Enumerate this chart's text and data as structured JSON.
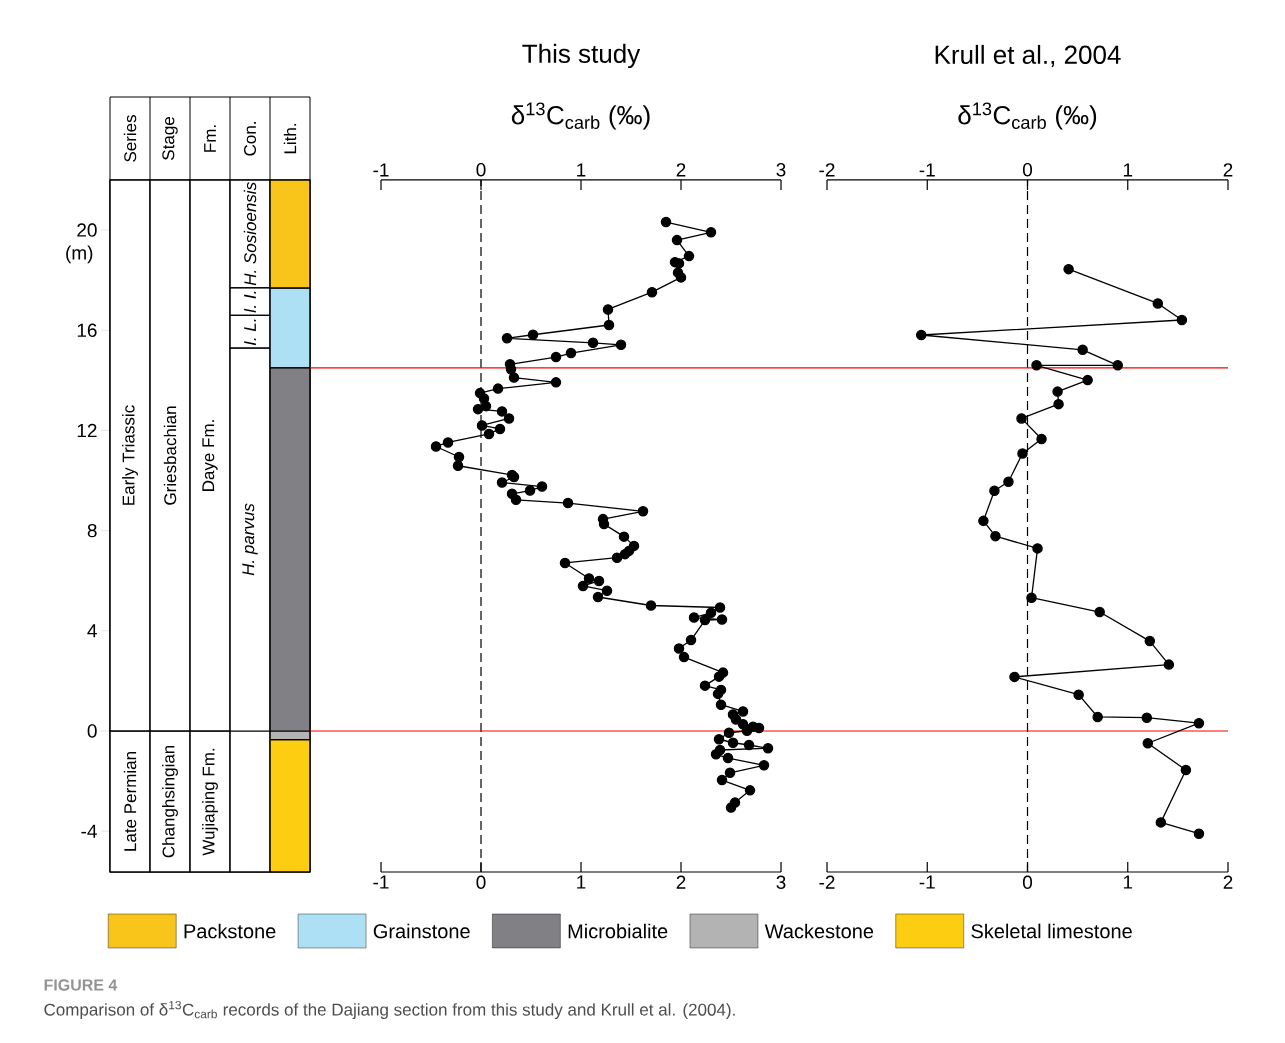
{
  "chart_data": [
    {
      "type": "bar",
      "stacked": true,
      "categories": [
        "Series",
        "Stage",
        "Fm.",
        "Con.",
        "Lith."
      ],
      "ylim": [
        -5.63,
        22.0
      ],
      "yticks": [
        -4,
        0,
        4,
        8,
        12,
        16,
        20
      ],
      "ylabel": "(m)",
      "legend": "bottom",
      "series": [
        {
          "color": "#ffffff",
          "values": [
            -5.63,
            -5.63,
            -5.63,
            -5.63,
            null
          ],
          "value_labels": [
            "Late Permian",
            "Changhsingian",
            "Wujiaping Fm.",
            null,
            null
          ]
        },
        {
          "color": "#ffffff",
          "values": [
            22.0,
            22.0,
            22.0,
            15.29,
            null
          ],
          "value_labels": [
            "Early Triassic",
            "Griesbachian",
            "Daye Fm.",
            "*H. parvus*",
            null
          ]
        },
        {
          "color": "#ffffff",
          "values": [
            null,
            null,
            null,
            1.31,
            null
          ],
          "value_labels": [
            null,
            null,
            null,
            "*I. L.*",
            null
          ]
        },
        {
          "color": "#ffffff",
          "values": [
            null,
            null,
            null,
            1.1,
            null
          ],
          "value_labels": [
            null,
            null,
            null,
            "*I. I.*",
            null
          ]
        },
        {
          "color": "#ffffff",
          "values": [
            null,
            null,
            null,
            4.3,
            null
          ],
          "value_labels": [
            null,
            null,
            null,
            "*H. Sosioensis*",
            null
          ]
        },
        {
          "name": "Wackestone",
          "color": "#b3b3b3",
          "values": [
            null,
            null,
            null,
            null,
            -0.35
          ]
        },
        {
          "name": "Skeletal limestone",
          "color": "#fccd10",
          "values": [
            null,
            null,
            null,
            null,
            -5.28
          ]
        },
        {
          "name": "Microbialite",
          "color": "#808085",
          "values": [
            null,
            null,
            null,
            null,
            14.5
          ]
        },
        {
          "name": "Grainstone",
          "color": "#aee0f5",
          "values": [
            null,
            null,
            null,
            null,
            3.19
          ]
        },
        {
          "name": "Packstone",
          "color": "#f9c51a",
          "values": [
            null,
            null,
            null,
            null,
            4.31
          ]
        }
      ],
      "annotations": [
        "FIGURE 4",
        "Comparison of δ$^{13}$C$_{carb}$ records of the Dajiang section from this study and Krull et al. (2004)."
      ]
    },
    {
      "type": "line",
      "title": "This study",
      "x2label": "δ$^{13}$C$_{carb}$ (‰)",
      "xlim": [
        -1,
        3
      ],
      "xticks": [
        -1,
        0,
        1,
        2,
        3
      ],
      "x2lim": [
        -1,
        3
      ],
      "x2ticks": [
        -1,
        0,
        1,
        2,
        3
      ],
      "ylim": [
        -5.63,
        22.0
      ],
      "tick_labels": "x",
      "marker": "circle",
      "line_style": "solid",
      "color": "#000000",
      "x": [
        1.85,
        2.3,
        1.96,
        2.08,
        1.94,
        1.98,
        1.97,
        2.0,
        1.71,
        1.27,
        1.28,
        0.52,
        0.26,
        1.12,
        1.4,
        0.9,
        0.75,
        0.29,
        0.3,
        0.33,
        0.75,
        0.17,
        -0.01,
        0.03,
        0.05,
        -0.03,
        0.21,
        0.28,
        0.01,
        0.19,
        0.08,
        -0.33,
        -0.45,
        -0.22,
        -0.23,
        0.31,
        0.33,
        0.21,
        0.61,
        0.49,
        0.31,
        0.35,
        0.87,
        1.62,
        1.22,
        1.23,
        1.43,
        1.53,
        1.48,
        1.44,
        1.36,
        0.84,
        1.08,
        1.18,
        1.02,
        1.26,
        1.17,
        1.7,
        2.39,
        2.3,
        2.13,
        2.41,
        2.24,
        2.1,
        1.98,
        2.03,
        2.42,
        2.38,
        2.24,
        2.4,
        2.37,
        2.4,
        2.62,
        2.52,
        2.55,
        2.62,
        2.72,
        2.78,
        2.66,
        2.48,
        2.38,
        2.52,
        2.68,
        2.87,
        2.39,
        2.35,
        2.47,
        2.83,
        2.49,
        2.41,
        2.69,
        2.54,
        2.5
      ],
      "values": [
        20.32,
        19.91,
        19.6,
        18.96,
        18.72,
        18.67,
        18.3,
        18.11,
        17.52,
        16.83,
        16.21,
        15.82,
        15.68,
        15.5,
        15.42,
        15.09,
        14.93,
        14.64,
        14.44,
        14.11,
        13.92,
        13.67,
        13.49,
        13.28,
        12.97,
        12.85,
        12.76,
        12.48,
        12.2,
        12.06,
        11.86,
        11.52,
        11.36,
        10.94,
        10.59,
        10.22,
        10.14,
        9.92,
        9.76,
        9.6,
        9.47,
        9.23,
        9.1,
        8.77,
        8.46,
        8.26,
        7.76,
        7.39,
        7.19,
        7.06,
        6.92,
        6.71,
        6.09,
        5.99,
        5.79,
        5.6,
        5.35,
        5.01,
        4.93,
        4.72,
        4.53,
        4.45,
        4.43,
        3.63,
        3.29,
        2.95,
        2.33,
        2.17,
        1.81,
        1.64,
        1.48,
        1.05,
        0.78,
        0.66,
        0.46,
        0.27,
        0.17,
        0.12,
        0.01,
        -0.07,
        -0.33,
        -0.47,
        -0.56,
        -0.69,
        -0.76,
        -0.93,
        -1.08,
        -1.37,
        -1.67,
        -1.96,
        -2.37,
        -2.86,
        -3.06
      ],
      "ref_lines": [
        {
          "axis": "x",
          "value": 0,
          "line_style": "dashed",
          "color": "#000000"
        },
        {
          "axis": "y",
          "value": 0,
          "color": "#ff0000"
        },
        {
          "axis": "y",
          "value": 14.5,
          "color": "#ff0000"
        }
      ]
    },
    {
      "type": "line",
      "title": "Krull et al., 2004",
      "x2label": "δ$^{13}$C$_{carb}$ (‰)",
      "xlim": [
        -2,
        2
      ],
      "xticks": [
        -2,
        -1,
        0,
        1,
        2
      ],
      "x2lim": [
        -2,
        2
      ],
      "x2ticks": [
        -2,
        -1,
        0,
        1,
        2
      ],
      "ylim": [
        -5.63,
        22.0
      ],
      "tick_labels": "x",
      "marker": "circle",
      "line_style": "solid",
      "color": "#000000",
      "x": [
        0.41,
        1.3,
        1.54,
        -1.06,
        0.55,
        0.9,
        0.09,
        0.6,
        0.3,
        0.31,
        -0.06,
        0.14,
        -0.05,
        -0.19,
        -0.33,
        -0.44,
        -0.32,
        0.1,
        0.04,
        0.72,
        1.22,
        1.41,
        -0.13,
        0.51,
        0.7,
        1.19,
        1.71,
        1.2,
        1.58,
        1.33,
        1.71
      ],
      "values": [
        18.44,
        17.07,
        16.41,
        15.81,
        15.22,
        14.6,
        14.6,
        14.01,
        13.55,
        13.05,
        12.48,
        11.66,
        11.08,
        9.95,
        9.59,
        8.39,
        7.78,
        7.29,
        5.32,
        4.75,
        3.59,
        2.65,
        2.16,
        1.45,
        0.56,
        0.53,
        0.31,
        -0.49,
        -1.56,
        -3.65,
        -4.1
      ],
      "ref_lines": [
        {
          "axis": "x",
          "value": 0,
          "line_style": "dashed",
          "color": "#000000"
        },
        {
          "axis": "y",
          "value": 0,
          "color": "#ff0000"
        },
        {
          "axis": "y",
          "value": 14.5,
          "color": "#ff0000"
        }
      ]
    }
  ]
}
